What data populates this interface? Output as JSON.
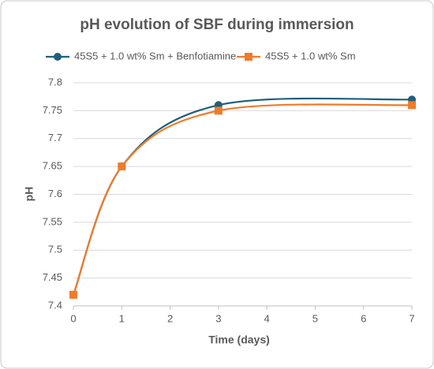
{
  "chart_data": {
    "type": "line",
    "title": "pH evolution of SBF during immersion",
    "x_label": "Time (days)",
    "y_label": "pH",
    "x": [
      0,
      1,
      3,
      7
    ],
    "series": [
      {
        "name": "45S5 + 1.0 wt% Sm + Benfotiamine",
        "color": "#1f5f7a",
        "marker": "circle",
        "values": [
          7.42,
          7.65,
          7.76,
          7.77
        ]
      },
      {
        "name": "45S5 + 1.0 wt% Sm",
        "color": "#f07b2a",
        "marker": "square",
        "values": [
          7.42,
          7.65,
          7.75,
          7.76
        ]
      }
    ],
    "xlim": [
      0,
      7
    ],
    "xticks": [
      0,
      1,
      2,
      3,
      4,
      5,
      6,
      7
    ],
    "ylim": [
      7.4,
      7.8
    ],
    "yticks": [
      7.4,
      7.45,
      7.5,
      7.55,
      7.6,
      7.65,
      7.7,
      7.75,
      7.8
    ],
    "grid": true,
    "smooth": true,
    "legend": "top"
  }
}
